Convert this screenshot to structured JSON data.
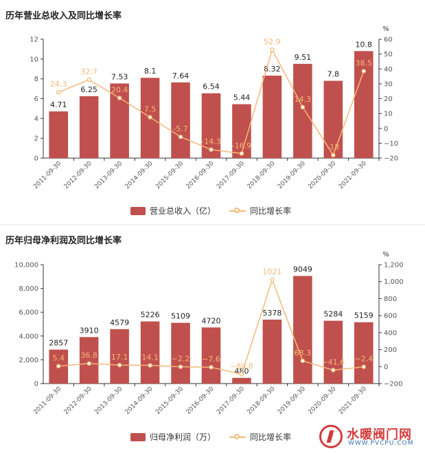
{
  "chart_data": [
    {
      "type": "bar",
      "title": "历年营业总收入及同比增长率",
      "categories": [
        "2011-09-30",
        "2012-09-30",
        "2013-09-30",
        "2014-09-30",
        "2015-09-30",
        "2016-09-30",
        "2017-09-30",
        "2018-09-30",
        "2019-09-30",
        "2020-09-30",
        "2021-09-30"
      ],
      "series": [
        {
          "name": "营业总收入（亿）",
          "type": "bar",
          "axis": "left",
          "values": [
            4.71,
            6.25,
            7.53,
            8.1,
            7.64,
            6.54,
            5.44,
            8.32,
            9.51,
            7.8,
            10.8
          ],
          "labels": [
            "4.71",
            "6.25",
            "7.53",
            "8.1",
            "7.64",
            "6.54",
            "5.44",
            "8.32",
            "9.51",
            "7.8",
            "10.8"
          ]
        },
        {
          "name": "同比增长率",
          "type": "line",
          "axis": "right",
          "values": [
            24.3,
            32.7,
            20.4,
            7.5,
            -5.7,
            -14.3,
            -16.9,
            52.9,
            14.3,
            -18,
            38.5
          ],
          "labels": [
            "24.3",
            "32.7",
            "20.4",
            "7.5",
            "-5.7",
            "-14.3",
            "-16.9",
            "52.9",
            "14.3",
            "-18",
            "38.5"
          ]
        }
      ],
      "y_left": {
        "range": [
          0,
          12
        ],
        "ticks": [
          "0",
          "2",
          "4",
          "6",
          "8",
          "10",
          "12"
        ]
      },
      "y_right": {
        "range": [
          -20,
          60
        ],
        "ticks": [
          "−20",
          "−10",
          "0",
          "10",
          "20",
          "30",
          "40",
          "50",
          "60"
        ],
        "unit": "%"
      },
      "grid": false,
      "legend_position": "bottom",
      "colors": {
        "bar": "#c0504d",
        "line": "#f5b878"
      }
    },
    {
      "type": "bar",
      "title": "历年归母净利润及同比增长率",
      "categories": [
        "2011-09-30",
        "2012-09-30",
        "2013-09-30",
        "2014-09-30",
        "2015-09-30",
        "2016-09-30",
        "2017-09-30",
        "2018-09-30",
        "2019-09-30",
        "2020-09-30",
        "2021-09-30"
      ],
      "series": [
        {
          "name": "归母净利润（万）",
          "type": "bar",
          "axis": "left",
          "values": [
            2857,
            3910,
            4579,
            5226,
            5109,
            4720,
            480,
            5378,
            9049,
            5284,
            5159
          ],
          "labels": [
            "2857",
            "3910",
            "4579",
            "5226",
            "5109",
            "4720",
            "480",
            "5378",
            "9049",
            "5284",
            "5159"
          ]
        },
        {
          "name": "同比增长率",
          "type": "line",
          "axis": "right",
          "values": [
            5.4,
            36.8,
            17.1,
            14.1,
            -2.2,
            -7.6,
            -89.8,
            1021,
            68.3,
            -41.6,
            -2.4
          ],
          "labels": [
            "5.4",
            "36.8",
            "17.1",
            "14.1",
            "−2.2",
            "−7.6",
            "−89.8",
            "1021",
            "68.3",
            "−41.6",
            "−2.4"
          ]
        }
      ],
      "y_left": {
        "range": [
          0,
          10000
        ],
        "ticks": [
          "0",
          "2,000",
          "4,000",
          "6,000",
          "8,000",
          "10,000"
        ]
      },
      "y_right": {
        "range": [
          -200,
          1200
        ],
        "ticks": [
          "−200",
          "0",
          "200",
          "400",
          "600",
          "800",
          "1,000",
          "1,200"
        ],
        "unit": "%"
      },
      "grid": false,
      "legend_position": "bottom",
      "colors": {
        "bar": "#c0504d",
        "line": "#f5b878"
      }
    }
  ],
  "watermark": {
    "name": "水暖阀门网",
    "url": "WWW.PVCPU.COM"
  }
}
